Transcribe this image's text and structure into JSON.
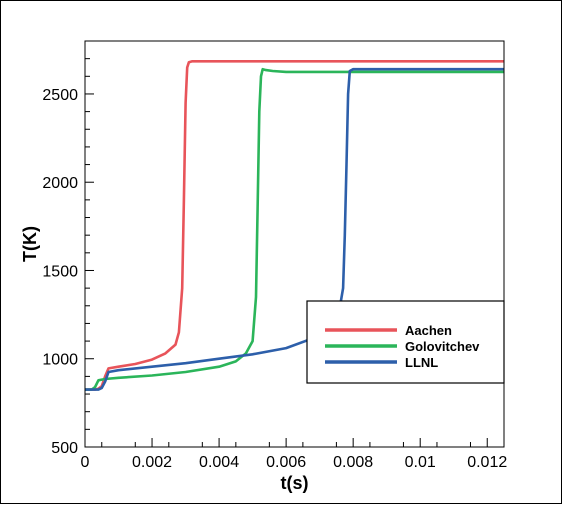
{
  "chart_data": {
    "type": "line",
    "title": "",
    "xlabel": "t(s)",
    "ylabel": "T(K)",
    "xlim": [
      0,
      0.0125
    ],
    "ylim": [
      500,
      2800
    ],
    "xticks": [
      0,
      0.002,
      0.004,
      0.006,
      0.008,
      0.01,
      0.012
    ],
    "xtick_labels": [
      "0",
      "0.002",
      "0.004",
      "0.006",
      "0.008",
      "0.01",
      "0.012"
    ],
    "yticks": [
      500,
      1000,
      1500,
      2000,
      2500
    ],
    "ytick_labels": [
      "500",
      "1000",
      "1500",
      "2000",
      "2500"
    ],
    "grid": false,
    "legend_position": "lower-right",
    "series": [
      {
        "name": "Aachen",
        "color": "#e8545a",
        "x": [
          0.0,
          0.0003,
          0.0004,
          0.0005,
          0.0006,
          0.0007,
          0.001,
          0.0015,
          0.002,
          0.0024,
          0.0027,
          0.0028,
          0.0029,
          0.00295,
          0.003,
          0.00305,
          0.0031,
          0.0032,
          0.0034,
          0.005,
          0.008,
          0.01,
          0.0125
        ],
        "y": [
          825,
          825,
          830,
          845,
          900,
          945,
          955,
          970,
          995,
          1030,
          1080,
          1150,
          1400,
          1900,
          2450,
          2650,
          2680,
          2685,
          2685,
          2685,
          2685,
          2685,
          2685
        ]
      },
      {
        "name": "Golovitchev",
        "color": "#2bb55a",
        "x": [
          0.0,
          0.0002,
          0.0003,
          0.0004,
          0.0005,
          0.0006,
          0.001,
          0.002,
          0.003,
          0.004,
          0.0045,
          0.0048,
          0.005,
          0.0051,
          0.00515,
          0.0052,
          0.00525,
          0.0053,
          0.0054,
          0.0056,
          0.006,
          0.008,
          0.01,
          0.0125
        ],
        "y": [
          825,
          825,
          840,
          878,
          882,
          885,
          892,
          905,
          925,
          955,
          985,
          1030,
          1100,
          1350,
          1850,
          2400,
          2600,
          2640,
          2635,
          2630,
          2625,
          2625,
          2625,
          2625
        ]
      },
      {
        "name": "LLNL",
        "color": "#2d5faa",
        "x": [
          0.0,
          0.0004,
          0.0005,
          0.0006,
          0.0007,
          0.001,
          0.002,
          0.003,
          0.004,
          0.005,
          0.006,
          0.007,
          0.0074,
          0.0076,
          0.0077,
          0.00775,
          0.0078,
          0.00785,
          0.0079,
          0.008,
          0.009,
          0.01,
          0.0125
        ],
        "y": [
          825,
          825,
          835,
          870,
          925,
          935,
          955,
          975,
          1000,
          1025,
          1060,
          1130,
          1200,
          1290,
          1400,
          1700,
          2100,
          2500,
          2630,
          2640,
          2640,
          2640,
          2640
        ]
      }
    ]
  }
}
